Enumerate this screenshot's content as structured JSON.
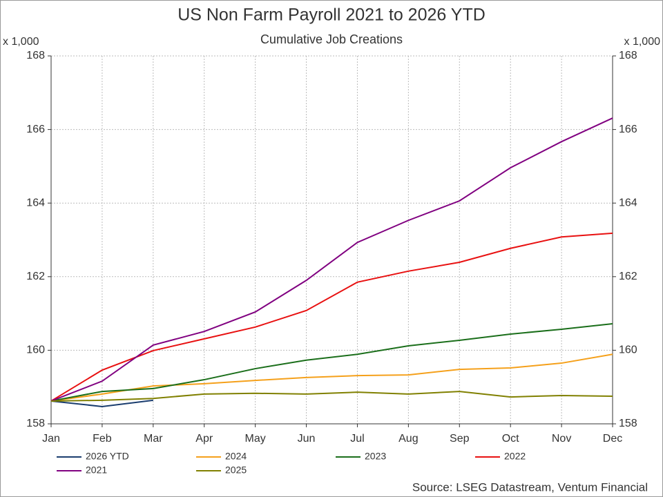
{
  "chart_data": {
    "type": "line",
    "title": "US Non Farm Payroll 2021 to 2026 YTD",
    "subtitle": "Cumulative Job Creations",
    "y_unit_label": "x 1,000",
    "source": "Source: LSEG Datastream, Ventum Financial",
    "categories": [
      "Jan",
      "Feb",
      "Mar",
      "Apr",
      "May",
      "Jun",
      "Jul",
      "Aug",
      "Sep",
      "Oct",
      "Nov",
      "Dec"
    ],
    "ylim": [
      158,
      168
    ],
    "yticks": [
      158,
      160,
      162,
      164,
      166,
      168
    ],
    "y2lim": [
      158,
      168
    ],
    "y2ticks": [
      158,
      160,
      162,
      164,
      166,
      168
    ],
    "grid": true,
    "legend": "bottom",
    "series": [
      {
        "name": "2026 YTD",
        "color": "#1a3d6e",
        "values": [
          158.62,
          158.47,
          158.64,
          null,
          null,
          null,
          null,
          null,
          null,
          null,
          null,
          null
        ]
      },
      {
        "name": "2024",
        "color": "#f5a01a",
        "values": [
          158.62,
          158.81,
          159.03,
          159.09,
          159.18,
          159.26,
          159.31,
          159.33,
          159.48,
          159.52,
          159.65,
          159.89
        ]
      },
      {
        "name": "2023",
        "color": "#1a6e1a",
        "values": [
          158.62,
          158.88,
          158.96,
          159.2,
          159.5,
          159.73,
          159.89,
          160.12,
          160.27,
          160.44,
          160.57,
          160.72
        ]
      },
      {
        "name": "2022",
        "color": "#e81010",
        "values": [
          158.62,
          159.46,
          159.99,
          160.31,
          160.63,
          161.08,
          161.85,
          162.15,
          162.39,
          162.77,
          163.08,
          163.18
        ]
      },
      {
        "name": "2021",
        "color": "#800080",
        "values": [
          158.62,
          159.16,
          160.14,
          160.51,
          161.04,
          161.9,
          162.93,
          163.53,
          164.06,
          164.96,
          165.67,
          166.31
        ]
      },
      {
        "name": "2025",
        "color": "#808000",
        "values": [
          158.62,
          158.64,
          158.69,
          158.81,
          158.83,
          158.81,
          158.86,
          158.81,
          158.88,
          158.73,
          158.77,
          158.75
        ]
      }
    ]
  }
}
